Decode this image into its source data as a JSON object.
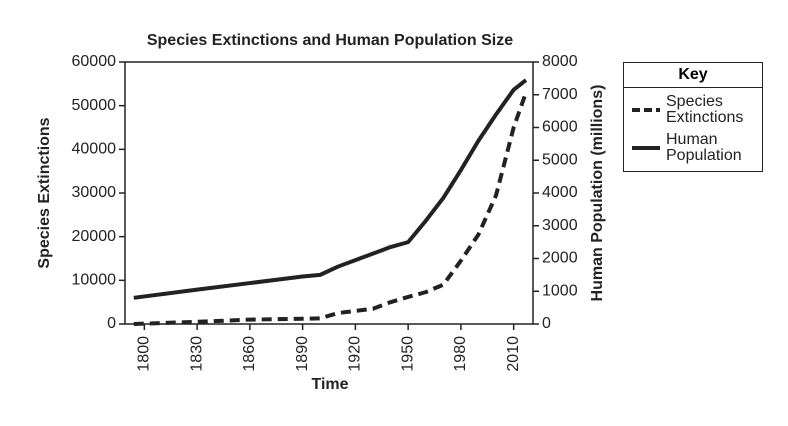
{
  "chart_data": {
    "type": "line",
    "title": "Species Extinctions and Human Population Size",
    "x_label": "Time",
    "y_label": "Species Extinctions",
    "y2_label": "Human Population (millions)",
    "legend_title": "Key",
    "x": [
      1794,
      1830,
      1860,
      1890,
      1900,
      1910,
      1920,
      1930,
      1940,
      1950,
      1960,
      1970,
      1980,
      1990,
      2000,
      2010,
      2017
    ],
    "series": [
      {
        "name": "Species Extinctions",
        "color": "#222222",
        "dash": true,
        "values": [
          0,
          500,
          1000,
          1200,
          1300,
          2500,
          3000,
          3500,
          5000,
          6200,
          7300,
          9000,
          14500,
          20500,
          29500,
          45000,
          53000
        ]
      },
      {
        "name": "Human Population",
        "color": "#222222",
        "dash": false,
        "axis": "y2",
        "values": [
          800,
          1050,
          1250,
          1450,
          1500,
          1750,
          1950,
          2150,
          2350,
          2500,
          3150,
          3850,
          4700,
          5600,
          6400,
          7150,
          7450
        ]
      }
    ],
    "xlim": [
      1789,
      2021
    ],
    "xticks": [
      1800,
      1830,
      1860,
      1890,
      1920,
      1950,
      1980,
      2010
    ],
    "ylim": [
      0,
      60000
    ],
    "yticks": [
      0,
      10000,
      20000,
      30000,
      40000,
      50000,
      60000
    ],
    "y2lim": [
      0,
      8000
    ],
    "y2ticks": [
      0,
      1000,
      2000,
      3000,
      4000,
      5000,
      6000,
      7000,
      8000
    ],
    "legend_position": "right"
  }
}
